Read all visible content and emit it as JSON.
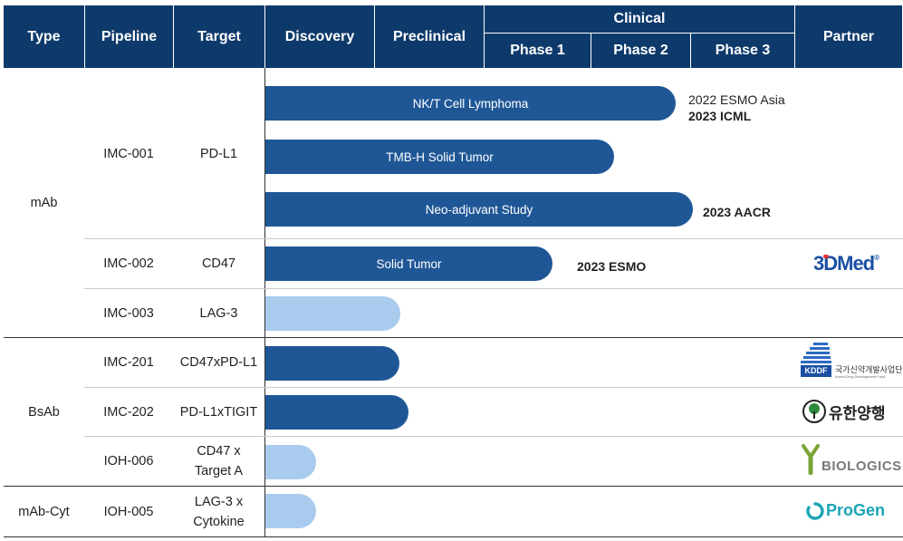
{
  "colors": {
    "header_bg": "#0e3a6b",
    "bar_clinical": "#1f5796",
    "bar_early": "#a9cbee",
    "3dmed_blue": "#1a4fa3",
    "3dmed_red": "#e4322b",
    "biologics_green": "#7aa336",
    "progen_teal": "#1aa5b5"
  },
  "header": {
    "type": "Type",
    "pipeline": "Pipeline",
    "target": "Target",
    "discovery": "Discovery",
    "preclinical": "Preclinical",
    "clinical": "Clinical",
    "phase1": "Phase 1",
    "phase2": "Phase 2",
    "phase3": "Phase 3",
    "partner": "Partner"
  },
  "types": {
    "mab": "mAb",
    "bsab": "BsAb",
    "mab_cyt": "mAb-Cyt"
  },
  "rows": [
    {
      "pipeline": "IMC-001",
      "target": "PD-L1"
    },
    {
      "pipeline": "IMC-002",
      "target": "CD47"
    },
    {
      "pipeline": "IMC-003",
      "target": "LAG-3"
    },
    {
      "pipeline": "IMC-201",
      "target": "CD47xPD-L1"
    },
    {
      "pipeline": "IMC-202",
      "target": "PD-L1xTIGIT"
    },
    {
      "pipeline": "IOH-006",
      "target_line1": "CD47 x",
      "target_line2": "Target  A"
    },
    {
      "pipeline": "IOH-005",
      "target_line1": "LAG-3 x",
      "target_line2": "Cytokine"
    }
  ],
  "bars": {
    "nkt": {
      "label": "NK/T  Cell  Lymphoma",
      "stage": "Phase 2"
    },
    "tmb": {
      "label": "TMB-H Solid Tumor",
      "stage": "Phase 2"
    },
    "neo": {
      "label": "Neo-adjuvant  Study",
      "stage": "Phase 2"
    },
    "solid": {
      "label": "Solid Tumor",
      "stage": "Phase 1"
    },
    "imc003": {
      "label": "",
      "stage": "Preclinical"
    },
    "imc201": {
      "label": "",
      "stage": "Preclinical"
    },
    "imc202": {
      "label": "",
      "stage": "Preclinical"
    },
    "ioh006": {
      "label": "",
      "stage": "Discovery"
    },
    "ioh005": {
      "label": "",
      "stage": "Discovery"
    }
  },
  "notes": {
    "nkt_line1": "2022 ESMO Asia",
    "nkt_line2": "2023  ICML",
    "neo": "2023  AACR",
    "solid": "2023  ESMO"
  },
  "partners": {
    "threedmed": {
      "part1": "3D",
      "part2": "Med",
      "reg": "®"
    },
    "kddf": {
      "abbr": "KDDF",
      "korean": "국가신약개발사업단",
      "english": "Korea Drug Development Fund"
    },
    "yuhan": {
      "text": "유한양행"
    },
    "biologics": {
      "text": "BIOLOGICS"
    },
    "progen": {
      "text": "ProGen"
    }
  }
}
